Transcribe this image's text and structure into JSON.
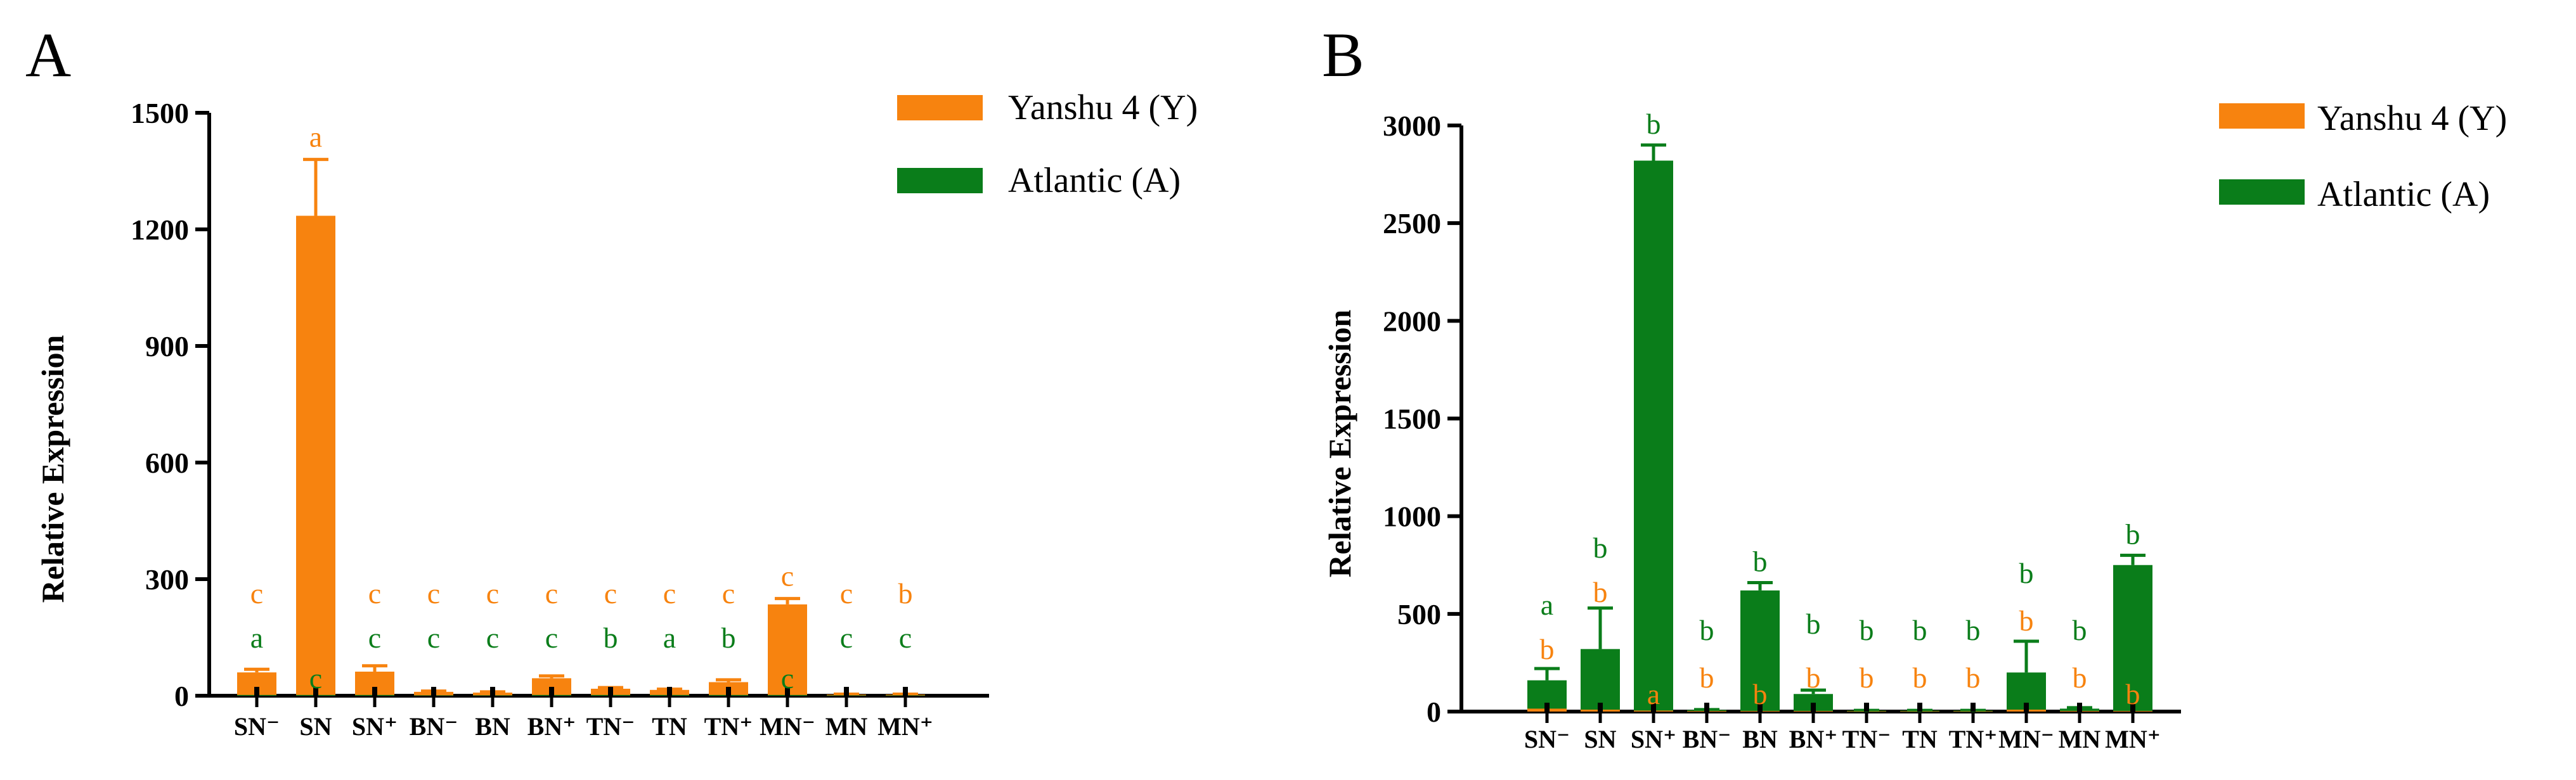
{
  "chart_data": [
    {
      "panel": "A",
      "type": "bar",
      "ylabel": "Relative Expression",
      "ylim": [
        0,
        1500
      ],
      "yticks": [
        0,
        300,
        600,
        900,
        1200,
        1500
      ],
      "categories": [
        "SN⁻",
        "SN",
        "SN⁺",
        "BN⁻",
        "BN",
        "BN⁺",
        "TN⁻",
        "TN",
        "TN⁺",
        "MN⁻",
        "MN",
        "MN⁺"
      ],
      "legend": [
        "Yanshu 4 (Y)",
        "Atlantic (A)"
      ],
      "series": [
        {
          "name": "Yanshu 4 (Y)",
          "color": "#f7830f",
          "values": [
            60,
            1235,
            62,
            10,
            8,
            45,
            18,
            15,
            35,
            235,
            3,
            3
          ],
          "errors": [
            8,
            145,
            15,
            2,
            2,
            6,
            3,
            2,
            6,
            15,
            1,
            1
          ],
          "letters": [
            "c",
            "a",
            "c",
            "c",
            "c",
            "c",
            "c",
            "c",
            "c",
            "c",
            "c",
            "b"
          ]
        },
        {
          "name": "Atlantic (A)",
          "color": "#0a7d1a",
          "values": [
            2,
            2,
            2,
            1,
            1,
            2,
            2,
            2,
            2,
            2,
            1,
            1
          ],
          "errors": [
            0,
            0,
            0,
            0,
            0,
            0,
            0,
            0,
            0,
            0,
            0,
            0
          ],
          "letters": [
            "a",
            "c",
            "c",
            "c",
            "c",
            "c",
            "b",
            "a",
            "b",
            "c",
            "c",
            "c"
          ]
        }
      ]
    },
    {
      "panel": "B",
      "type": "bar",
      "ylabel": "Relative Expression",
      "ylim": [
        0,
        3000
      ],
      "yticks": [
        0,
        500,
        1000,
        1500,
        2000,
        2500,
        3000
      ],
      "categories": [
        "SN⁻",
        "SN",
        "SN⁺",
        "BN⁻",
        "BN",
        "BN⁺",
        "TN⁻",
        "TN",
        "TN⁺",
        "MN⁻",
        "MN",
        "MN⁺"
      ],
      "legend": [
        "Yanshu 4 (Y)",
        "Atlantic (A)"
      ],
      "series": [
        {
          "name": "Yanshu 4 (Y)",
          "color": "#f7830f",
          "values": [
            15,
            10,
            5,
            3,
            3,
            3,
            2,
            2,
            2,
            10,
            3,
            3
          ],
          "errors": [
            0,
            0,
            0,
            0,
            0,
            0,
            0,
            0,
            0,
            0,
            0,
            0
          ],
          "letters": [
            "b",
            "b",
            "a",
            "b",
            "b",
            "b",
            "b",
            "b",
            "b",
            "b",
            "b",
            "b"
          ]
        },
        {
          "name": "Atlantic (A)",
          "color": "#0a7d1a",
          "values": [
            160,
            320,
            2820,
            8,
            620,
            90,
            5,
            5,
            5,
            200,
            15,
            750
          ],
          "errors": [
            60,
            210,
            80,
            2,
            40,
            20,
            1,
            1,
            1,
            160,
            5,
            50
          ],
          "letters": [
            "a",
            "b",
            "b",
            "b",
            "b",
            "b",
            "b",
            "b",
            "b",
            "b",
            "b",
            "b"
          ]
        }
      ]
    }
  ]
}
